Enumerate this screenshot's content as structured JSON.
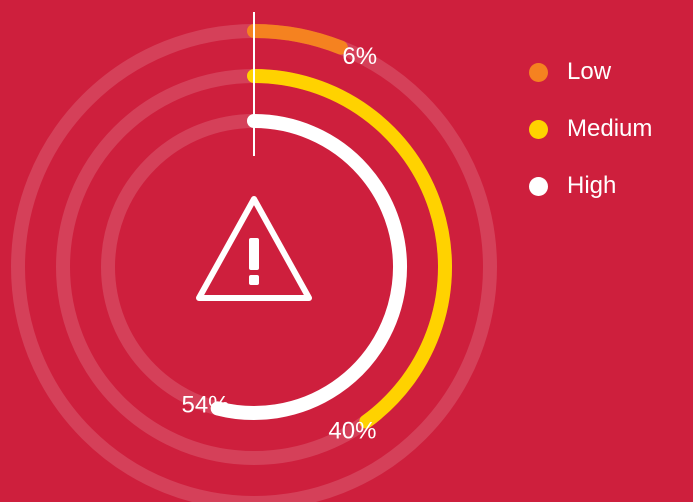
{
  "chart_data": {
    "type": "radial-bar",
    "series": [
      {
        "name": "Low",
        "value": 6,
        "label": "6%",
        "color": "#F58220"
      },
      {
        "name": "Medium",
        "value": 40,
        "label": "40%",
        "color": "#FFD200"
      },
      {
        "name": "High",
        "value": 54,
        "label": "54%",
        "color": "#FFFFFF"
      }
    ],
    "value_max": 100,
    "track_color": "rgba(255,255,255,0.15)",
    "center_icon": "warning-icon",
    "legend_position": "right"
  },
  "colors": {
    "background": "#CE1F3D"
  }
}
